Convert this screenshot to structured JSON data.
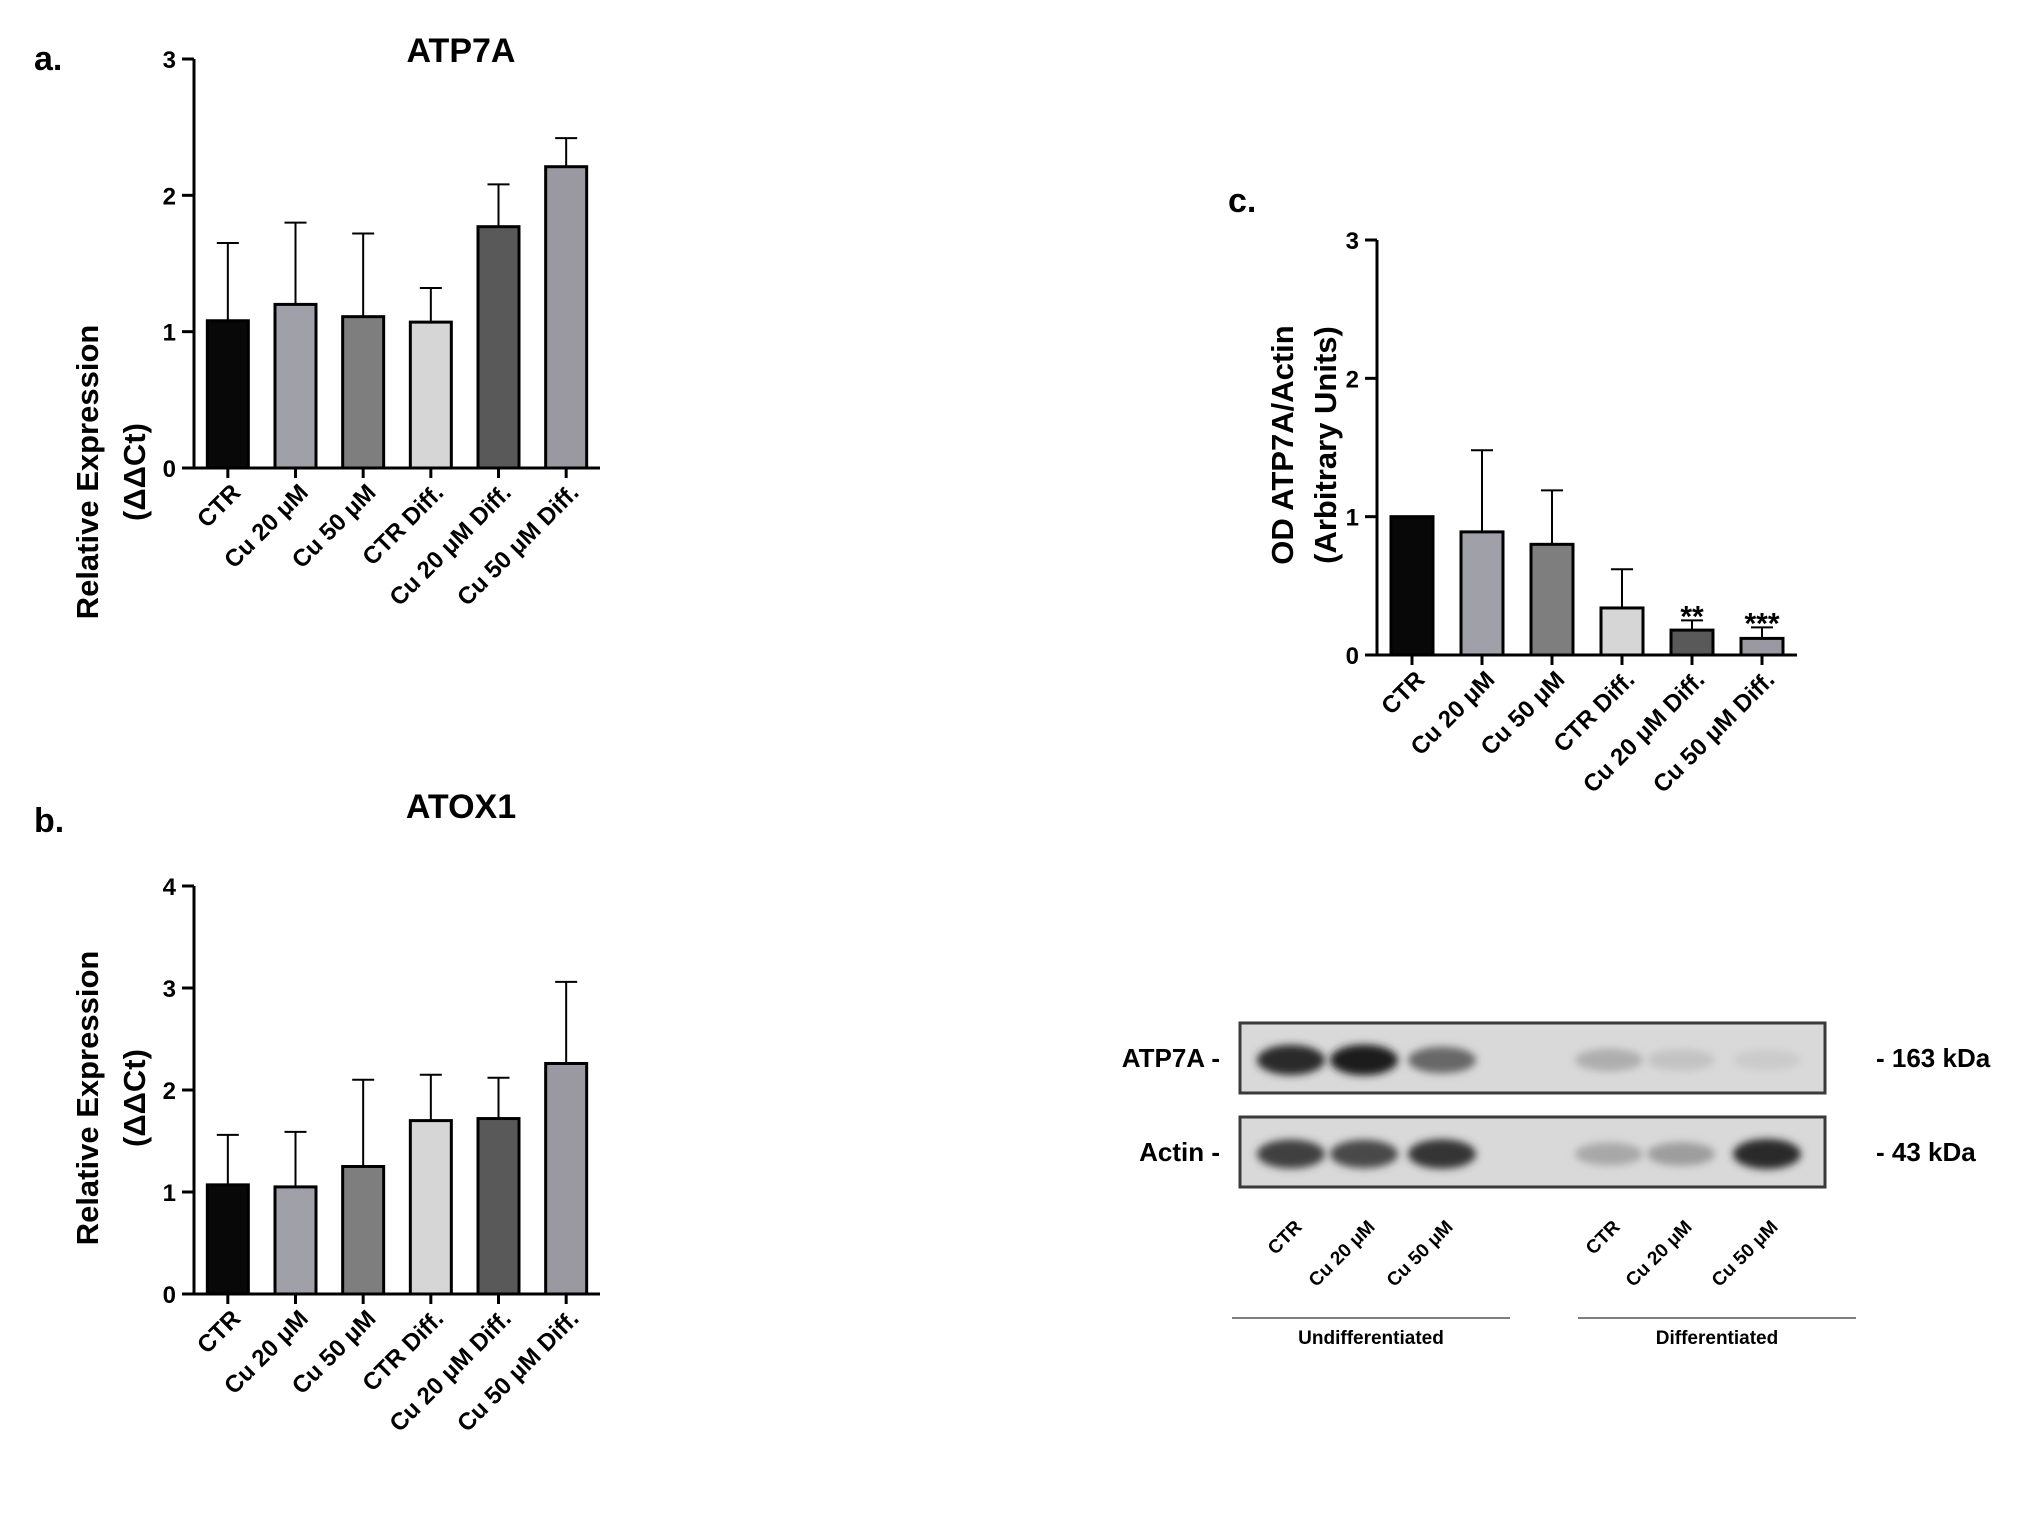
{
  "chart_data": [
    {
      "type": "bar",
      "panel": "a.",
      "title": "ATP7A",
      "ylabel": [
        "Relative Expression",
        "(ΔΔCt)"
      ],
      "xlabel": "",
      "ylim": [
        0,
        3
      ],
      "yticks": [
        "0",
        "1",
        "2",
        "3"
      ],
      "grid": false,
      "categories": [
        "CTR",
        "Cu 20 μM",
        "Cu 50 μM",
        "CTR Diff.",
        "Cu 20 μM Diff.",
        "Cu 50 μM Diff."
      ],
      "values": [
        1.08,
        1.2,
        1.11,
        1.07,
        1.77,
        2.21
      ],
      "error": [
        0.57,
        0.6,
        0.61,
        0.25,
        0.31,
        0.21
      ],
      "annotations": [
        "",
        "",
        "",
        "",
        "",
        ""
      ]
    },
    {
      "type": "bar",
      "panel": "b.",
      "title": "ATOX1",
      "ylabel": [
        "Relative Expression",
        "(ΔΔCt)"
      ],
      "xlabel": "",
      "ylim": [
        0,
        4
      ],
      "yticks": [
        "0",
        "1",
        "2",
        "3",
        "4"
      ],
      "grid": false,
      "categories": [
        "CTR",
        "Cu 20 μM",
        "Cu 50 μM",
        "CTR Diff.",
        "Cu 20 μM Diff.",
        "Cu 50 μM Diff."
      ],
      "values": [
        1.07,
        1.05,
        1.25,
        1.7,
        1.72,
        2.26
      ],
      "error": [
        0.49,
        0.54,
        0.85,
        0.45,
        0.4,
        0.8
      ],
      "annotations": [
        "",
        "",
        "",
        "",
        "",
        ""
      ]
    },
    {
      "type": "bar",
      "panel": "c.",
      "title": "",
      "ylabel": [
        "OD ATP7A/Actin",
        "(Arbitrary Units)"
      ],
      "xlabel": "",
      "ylim": [
        0,
        3
      ],
      "yticks": [
        "0",
        "1",
        "2",
        "3"
      ],
      "grid": false,
      "categories": [
        "CTR",
        "Cu 20 μM",
        "Cu 50 μM",
        "CTR Diff.",
        "Cu 20 μM Diff.",
        "Cu 50 μM Diff."
      ],
      "values": [
        1.0,
        0.89,
        0.8,
        0.34,
        0.18,
        0.12
      ],
      "error": [
        0.0,
        0.59,
        0.39,
        0.28,
        0.07,
        0.08
      ],
      "annotations": [
        "",
        "",
        "",
        "",
        "**",
        "***"
      ]
    }
  ],
  "colors": [
    "#080808",
    "#a0a0a8",
    "#7e7e7e",
    "#d6d6d6",
    "#595959",
    "#9a99a1"
  ],
  "western_blot": {
    "rows": [
      {
        "label": "ATP7A -",
        "size": "- 163 kDa",
        "intensity": [
          0.85,
          0.9,
          0.55,
          0.0,
          0.22,
          0.12,
          0.08
        ]
      },
      {
        "label": "Actin -",
        "size": "- 43 kDa",
        "intensity": [
          0.75,
          0.7,
          0.8,
          0.0,
          0.25,
          0.3,
          0.85
        ]
      }
    ],
    "lanes": [
      "CTR",
      "Cu 20 μM",
      "Cu 50 μM",
      "CTR",
      "Cu 20 μM",
      "Cu 50 μM"
    ],
    "groups": [
      "Undifferentiated",
      "Differentiated"
    ]
  }
}
